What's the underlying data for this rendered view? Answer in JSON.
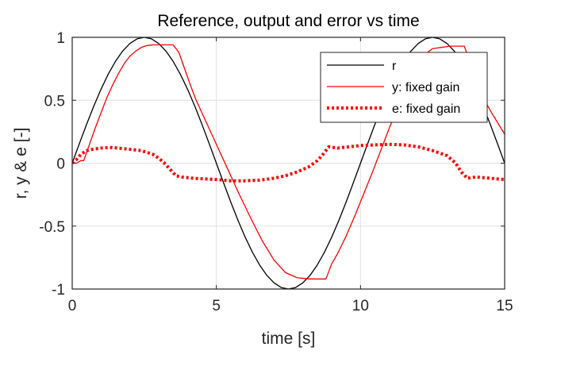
{
  "chart_data": {
    "type": "line",
    "title": "Reference, output and error vs time",
    "xlabel": "time [s]",
    "ylabel": "r, y & e [-]",
    "xlim": [
      0,
      15
    ],
    "ylim": [
      -1,
      1
    ],
    "xticks": [
      0,
      5,
      10,
      15
    ],
    "yticks": [
      -1,
      -0.5,
      0,
      0.5,
      1
    ],
    "xtick_labels": [
      "0",
      "5",
      "10",
      "15"
    ],
    "ytick_labels": [
      "-1",
      "-0.5",
      "0",
      "0.5",
      "1"
    ],
    "grid": true,
    "legend_position": "top-right",
    "series": [
      {
        "name": "r",
        "color": "#000000",
        "style": "solid",
        "x": [
          0,
          0.25,
          0.5,
          0.75,
          1,
          1.25,
          1.5,
          1.75,
          2,
          2.25,
          2.5,
          2.75,
          3,
          3.25,
          3.5,
          3.75,
          4,
          4.25,
          4.5,
          4.75,
          5,
          5.25,
          5.5,
          5.75,
          6,
          6.25,
          6.5,
          6.75,
          7,
          7.25,
          7.5,
          7.75,
          8,
          8.25,
          8.5,
          8.75,
          9,
          9.25,
          9.5,
          9.75,
          10,
          10.25,
          10.5,
          10.75,
          11,
          11.25,
          11.5,
          11.75,
          12,
          12.25,
          12.5,
          12.75,
          13,
          13.25,
          13.5,
          13.75,
          14,
          14.25,
          14.5,
          14.75,
          15
        ],
        "y": [
          0,
          0.156,
          0.309,
          0.454,
          0.588,
          0.707,
          0.809,
          0.891,
          0.951,
          0.988,
          1.0,
          0.988,
          0.951,
          0.891,
          0.809,
          0.707,
          0.588,
          0.454,
          0.309,
          0.156,
          0,
          -0.156,
          -0.309,
          -0.454,
          -0.588,
          -0.707,
          -0.809,
          -0.891,
          -0.951,
          -0.988,
          -1.0,
          -0.988,
          -0.951,
          -0.891,
          -0.809,
          -0.707,
          -0.588,
          -0.454,
          -0.309,
          -0.156,
          0,
          0.156,
          0.309,
          0.454,
          0.588,
          0.707,
          0.809,
          0.891,
          0.951,
          0.988,
          1.0,
          0.988,
          0.951,
          0.891,
          0.809,
          0.707,
          0.588,
          0.454,
          0.309,
          0.156,
          0
        ]
      },
      {
        "name": "y: fixed gain",
        "color": "#ff0000",
        "style": "solid",
        "x": [
          0,
          0.15,
          0.3,
          0.4,
          0.6,
          0.8,
          1.0,
          1.2,
          1.4,
          1.6,
          1.8,
          2.0,
          2.2,
          2.4,
          2.6,
          2.8,
          3.0,
          3.2,
          3.5,
          3.7,
          3.9,
          4.1,
          4.3,
          4.6,
          5.0,
          5.4,
          5.8,
          6.2,
          6.6,
          7.0,
          7.4,
          7.8,
          8.2,
          8.6,
          8.8,
          9.0,
          9.2,
          9.5,
          9.8,
          10.1,
          10.4,
          10.7,
          11.0,
          11.3,
          11.6,
          11.9,
          12.2,
          12.5,
          12.8,
          13.1,
          13.4,
          13.6,
          13.8,
          14.0,
          14.3,
          14.6,
          15.0
        ],
        "y": [
          0,
          0.0,
          0.02,
          0.02,
          0.15,
          0.28,
          0.4,
          0.52,
          0.62,
          0.71,
          0.79,
          0.85,
          0.89,
          0.92,
          0.935,
          0.94,
          0.94,
          0.94,
          0.94,
          0.88,
          0.75,
          0.62,
          0.5,
          0.35,
          0.15,
          -0.05,
          -0.25,
          -0.44,
          -0.62,
          -0.77,
          -0.87,
          -0.91,
          -0.92,
          -0.92,
          -0.92,
          -0.8,
          -0.72,
          -0.58,
          -0.42,
          -0.25,
          -0.08,
          0.1,
          0.28,
          0.45,
          0.6,
          0.74,
          0.86,
          0.91,
          0.92,
          0.93,
          0.93,
          0.93,
          0.8,
          0.65,
          0.5,
          0.38,
          0.23
        ]
      },
      {
        "name": "e: fixed gain",
        "color": "#ff0000",
        "style": "dotted",
        "x": [
          0,
          0.15,
          0.3,
          0.5,
          0.7,
          1.0,
          1.3,
          1.6,
          2.0,
          2.4,
          2.8,
          3.0,
          3.2,
          3.4,
          3.6,
          3.8,
          4.2,
          4.6,
          5.0,
          5.5,
          6.0,
          6.5,
          7.0,
          7.4,
          7.8,
          8.2,
          8.5,
          8.7,
          8.9,
          9.2,
          9.6,
          10.0,
          10.5,
          11.0,
          11.5,
          12.0,
          12.5,
          13.0,
          13.3,
          13.5,
          13.7,
          14.0,
          14.5,
          15.0
        ],
        "y": [
          0,
          0.03,
          0.07,
          0.1,
          0.11,
          0.12,
          0.125,
          0.12,
          0.11,
          0.1,
          0.07,
          0.04,
          0.0,
          -0.05,
          -0.1,
          -0.11,
          -0.12,
          -0.125,
          -0.13,
          -0.14,
          -0.14,
          -0.135,
          -0.12,
          -0.1,
          -0.07,
          -0.03,
          0.02,
          0.07,
          0.13,
          0.12,
          0.13,
          0.14,
          0.145,
          0.15,
          0.145,
          0.13,
          0.1,
          0.06,
          0.0,
          -0.07,
          -0.12,
          -0.11,
          -0.12,
          -0.13
        ]
      }
    ]
  }
}
